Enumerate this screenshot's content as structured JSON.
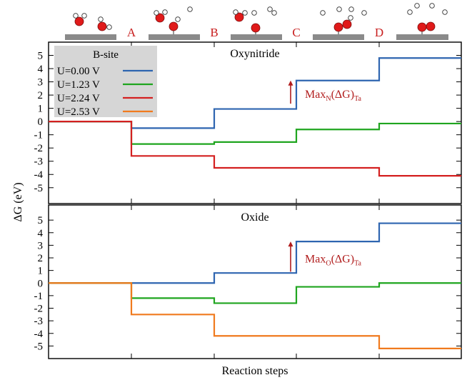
{
  "chart_data": [
    {
      "type": "line",
      "title": "Oxynitride",
      "legend": {
        "title": "B-site",
        "placement": "top-left",
        "entries": [
          "U=0.00 V",
          "U=1.23 V",
          "U=2.24 V",
          "U=2.53 V"
        ]
      },
      "ylabel": "ΔG (eV)",
      "ylim": [
        -6.2,
        6.0
      ],
      "yticks": [
        -5,
        -4,
        -3,
        -2,
        -1,
        0,
        1,
        2,
        3,
        4,
        5
      ],
      "step_labels": [
        "A",
        "B",
        "C",
        "D"
      ],
      "series": [
        {
          "name": "U=0.00 V",
          "color": "#2e65b0",
          "values": [
            0,
            -0.5,
            0.95,
            3.1,
            4.8
          ]
        },
        {
          "name": "U=1.23 V",
          "color": "#1fa51f",
          "values": [
            0,
            -1.7,
            -1.55,
            -0.6,
            -0.15
          ]
        },
        {
          "name": "U=2.24 V",
          "color": "#d42020",
          "values": [
            0,
            -2.6,
            -3.5,
            -3.5,
            -4.1
          ]
        }
      ],
      "annotation": {
        "text": "Max",
        "subscript": "N",
        "suffix": "(ΔG)",
        "suffix_sub": "Ta",
        "color": "#b11d1d",
        "step": 2,
        "from": 1.35,
        "to": 3.1
      }
    },
    {
      "type": "line",
      "title": "Oxide",
      "ylim": [
        -6.0,
        6.2
      ],
      "yticks": [
        -5,
        -4,
        -3,
        -2,
        -1,
        0,
        1,
        2,
        3,
        4,
        5
      ],
      "series": [
        {
          "name": "U=0.00 V",
          "color": "#2e65b0",
          "values": [
            0,
            0,
            0.8,
            3.3,
            4.75
          ]
        },
        {
          "name": "U=1.23 V",
          "color": "#1fa51f",
          "values": [
            0,
            -1.2,
            -1.6,
            -0.3,
            0
          ]
        },
        {
          "name": "U=2.53 V",
          "color": "#f07a1e",
          "values": [
            0,
            -2.5,
            -4.2,
            -4.2,
            -5.2
          ]
        }
      ],
      "annotation": {
        "text": "Max",
        "subscript": "O",
        "suffix": "(ΔG)",
        "suffix_sub": "Ta",
        "color": "#b11d1d",
        "step": 2,
        "from": 0.9,
        "to": 3.3
      }
    }
  ],
  "xlabel": "Reaction steps",
  "shared_ylabel": "ΔG (eV)",
  "legend_colors": [
    "#2e65b0",
    "#1fa51f",
    "#d42020",
    "#f07a1e"
  ],
  "step_label_color": "#c81e1e"
}
